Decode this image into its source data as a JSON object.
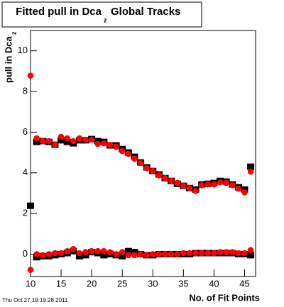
{
  "chart_data": {
    "type": "scatter",
    "title": "Fitted pull in Dca",
    "title_subscript": "z",
    "title_suffix": "Global Tracks",
    "y_label": "pull in Dca",
    "y_label_subscript": "z",
    "x_label": "No. of Fit Points",
    "timestamp": "Thu Oct 27 19:19:28 2011",
    "x": [
      10,
      11,
      12,
      13,
      14,
      15,
      16,
      17,
      18,
      19,
      20,
      21,
      22,
      23,
      24,
      25,
      26,
      27,
      28,
      29,
      30,
      31,
      32,
      33,
      34,
      35,
      36,
      37,
      38,
      39,
      40,
      41,
      42,
      43,
      44,
      45,
      46
    ],
    "series": [
      {
        "color": "#000000",
        "marker": "square",
        "values": [
          2.38,
          5.52,
          5.56,
          5.52,
          5.38,
          5.6,
          5.52,
          5.45,
          5.6,
          5.6,
          5.66,
          5.56,
          5.52,
          5.35,
          5.35,
          5.17,
          5.0,
          4.79,
          4.51,
          4.27,
          4.09,
          3.92,
          3.74,
          3.6,
          3.46,
          3.36,
          3.25,
          3.18,
          3.43,
          3.46,
          3.5,
          3.6,
          3.57,
          3.43,
          3.29,
          3.18,
          4.3
        ]
      },
      {
        "color": "#ff0000",
        "marker": "circle",
        "values": [
          8.78,
          5.7,
          5.56,
          5.56,
          5.38,
          5.77,
          5.7,
          5.56,
          5.7,
          5.63,
          5.63,
          5.42,
          5.45,
          5.38,
          5.28,
          5.07,
          4.93,
          4.69,
          4.48,
          4.23,
          4.09,
          3.88,
          3.74,
          3.6,
          3.5,
          3.36,
          3.25,
          3.11,
          3.39,
          3.43,
          3.43,
          3.53,
          3.5,
          3.39,
          3.22,
          3.04,
          4.06
        ]
      },
      {
        "color": "#000000",
        "marker": "square",
        "values": [
          null,
          -0.15,
          -0.1,
          -0.1,
          -0.05,
          0.0,
          0.05,
          0.15,
          -0.1,
          -0.05,
          0.1,
          0.05,
          -0.05,
          0.0,
          -0.05,
          -0.1,
          0.15,
          0.1,
          0.0,
          -0.05,
          -0.05,
          0.0,
          0.0,
          0.0,
          0.0,
          0.0,
          0.0,
          0.05,
          0.05,
          0.05,
          0.05,
          0.05,
          0.05,
          0.05,
          0.0,
          0.0,
          -0.05
        ]
      },
      {
        "color": "#ff0000",
        "marker": "circle",
        "values": [
          -0.77,
          0.0,
          -0.05,
          0.0,
          0.05,
          0.05,
          0.15,
          0.25,
          0.05,
          0.1,
          0.15,
          0.15,
          0.15,
          0.1,
          0.0,
          0.1,
          -0.05,
          -0.05,
          0.0,
          -0.05,
          0.0,
          0.0,
          0.0,
          0.0,
          0.0,
          0.05,
          0.05,
          0.05,
          0.05,
          0.05,
          0.05,
          0.1,
          0.1,
          0.1,
          0.05,
          0.05,
          0.2
        ]
      }
    ],
    "xlim": [
      10,
      46.8
    ],
    "ylim": [
      -1.1,
      11.0
    ],
    "xticks": [
      10,
      15,
      20,
      25,
      30,
      35,
      40,
      45
    ],
    "yticks": [
      0,
      2,
      4,
      6,
      8,
      10
    ]
  }
}
